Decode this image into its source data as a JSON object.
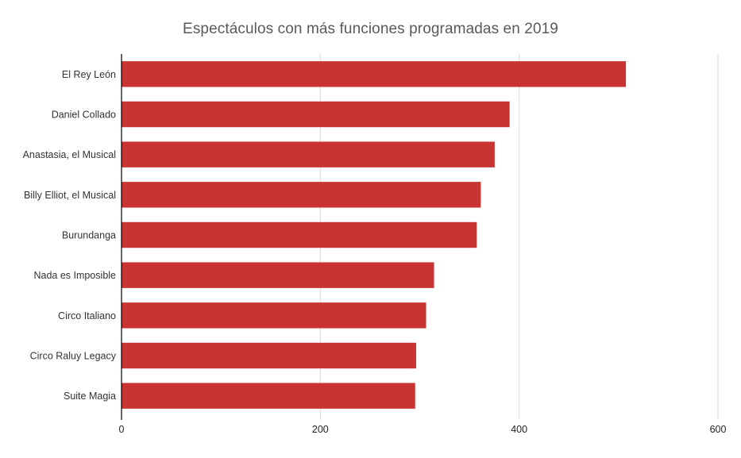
{
  "chart_data": {
    "type": "bar",
    "orientation": "horizontal",
    "title": "Espectáculos con más funciones programadas en 2019",
    "xlabel": "",
    "ylabel": "",
    "categories": [
      "El Rey León",
      "Daniel Collado",
      "Anastasia, el Musical",
      "Billy Elliot, el Musical",
      "Burundanga",
      "Nada es Imposible",
      "Circo Italiano",
      "Circo Raluy Legacy",
      "Suite Magia"
    ],
    "values": [
      507,
      390,
      375,
      361,
      357,
      314,
      306,
      296,
      295
    ],
    "xlim": [
      0,
      600
    ],
    "xticks": [
      0,
      200,
      400,
      600
    ],
    "grid": "vertical",
    "legend": "none",
    "colors": {
      "bar": "#c73432",
      "gridline": "#d9d9d9",
      "axis": "#000000"
    }
  }
}
